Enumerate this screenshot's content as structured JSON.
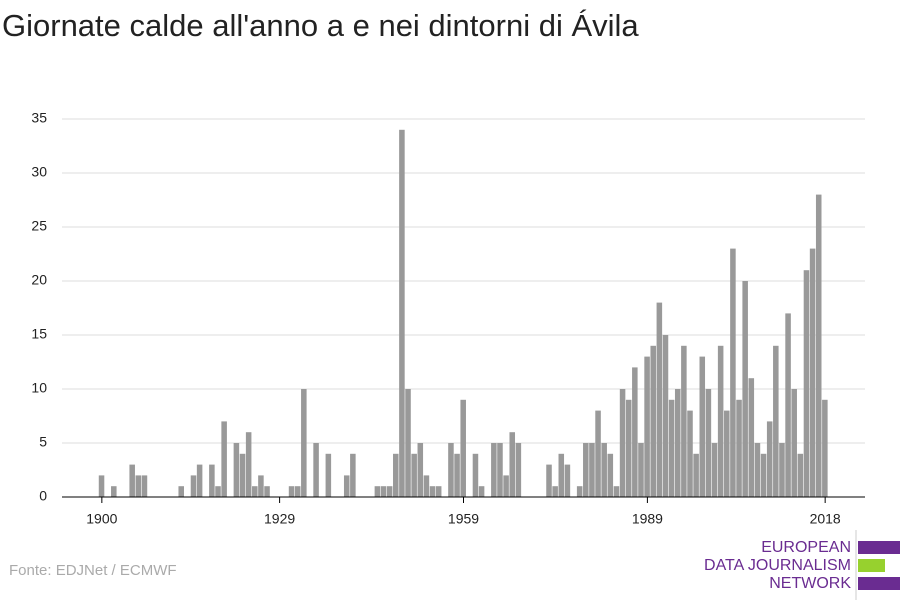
{
  "chart_data": {
    "type": "bar",
    "title": "Giornate calde all'anno a e nei dintorni di Ávila",
    "source": "Fonte: EDJNet / ECMWF",
    "logo": [
      "EUROPEAN",
      "DATA JOURNALISM",
      "NETWORK"
    ],
    "color": "#999999",
    "grid": true,
    "x": [
      1900,
      1901,
      1902,
      1903,
      1904,
      1905,
      1906,
      1907,
      1908,
      1909,
      1910,
      1911,
      1912,
      1913,
      1914,
      1915,
      1916,
      1917,
      1918,
      1919,
      1920,
      1921,
      1922,
      1923,
      1924,
      1925,
      1926,
      1927,
      1928,
      1929,
      1930,
      1931,
      1932,
      1933,
      1934,
      1935,
      1936,
      1937,
      1938,
      1939,
      1940,
      1941,
      1942,
      1943,
      1944,
      1945,
      1946,
      1947,
      1948,
      1949,
      1950,
      1951,
      1952,
      1953,
      1954,
      1955,
      1956,
      1957,
      1958,
      1959,
      1960,
      1961,
      1962,
      1963,
      1964,
      1965,
      1966,
      1967,
      1968,
      1969,
      1970,
      1971,
      1972,
      1973,
      1974,
      1975,
      1976,
      1977,
      1978,
      1979,
      1980,
      1981,
      1982,
      1983,
      1984,
      1985,
      1986,
      1987,
      1988,
      1989,
      1990,
      1991,
      1992,
      1993,
      1994,
      1995,
      1996,
      1997,
      1998,
      1999,
      2000,
      2001,
      2002,
      2003,
      2004,
      2005,
      2006,
      2007,
      2008,
      2009,
      2010,
      2011,
      2012,
      2013,
      2014,
      2015,
      2016,
      2017,
      2018
    ],
    "values": [
      2,
      0,
      1,
      0,
      0,
      3,
      2,
      2,
      0,
      0,
      0,
      0,
      0,
      1,
      0,
      2,
      3,
      0,
      3,
      1,
      7,
      0,
      5,
      4,
      6,
      1,
      2,
      1,
      0,
      0,
      0,
      1,
      1,
      10,
      0,
      5,
      0,
      4,
      0,
      0,
      2,
      4,
      0,
      0,
      0,
      1,
      1,
      1,
      4,
      34,
      10,
      4,
      5,
      2,
      1,
      1,
      0,
      5,
      4,
      9,
      0,
      4,
      1,
      0,
      5,
      5,
      2,
      6,
      5,
      0,
      0,
      0,
      0,
      3,
      1,
      4,
      3,
      0,
      1,
      5,
      5,
      8,
      5,
      4,
      1,
      10,
      9,
      12,
      5,
      13,
      14,
      18,
      15,
      9,
      10,
      14,
      8,
      4,
      13,
      10,
      5,
      14,
      8,
      23,
      9,
      20,
      11,
      5,
      4,
      7,
      14,
      5,
      17,
      10,
      4,
      21,
      23,
      28,
      9
    ],
    "xlim": [
      1893.5,
      2024.5
    ],
    "xticks": [
      1900,
      1929,
      1959,
      1989,
      2018
    ],
    "ylim": [
      0,
      35
    ],
    "yticks": [
      0,
      5,
      10,
      15,
      20,
      25,
      30,
      35
    ]
  }
}
